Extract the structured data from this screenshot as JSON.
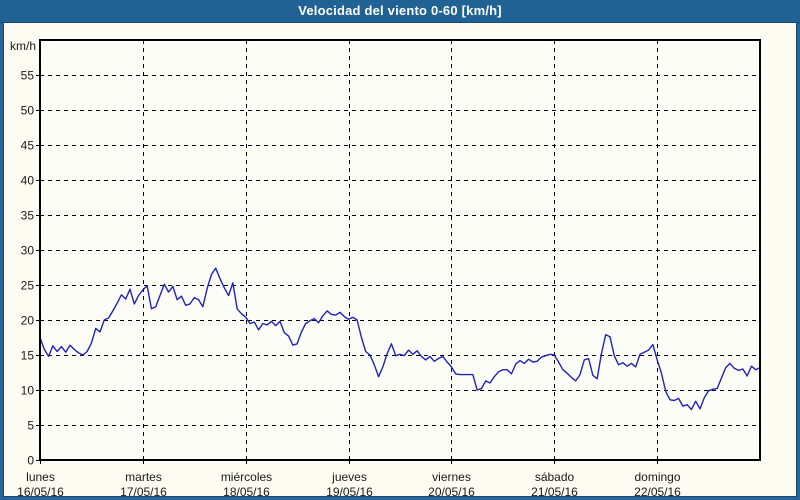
{
  "window": {
    "title": "Velocidad del viento 0-60 [km/h]"
  },
  "colors": {
    "titlebar_bg": "#1F6293",
    "titlebar_text": "#FFFFFF",
    "frame_border": "#27659B",
    "page_background": "#FCFCF2",
    "plot_background": "#FDFDF8",
    "grid": "#000000",
    "axis_border": "#000000",
    "line": "#2222BB",
    "label_text": "#1A1A1A"
  },
  "y_axis": {
    "unit_label": "km/h",
    "ticks": [
      0,
      5,
      10,
      15,
      20,
      25,
      30,
      35,
      40,
      45,
      50,
      55
    ],
    "max": 60
  },
  "x_axis": {
    "days": [
      {
        "name": "lunes",
        "date": "16/05/16"
      },
      {
        "name": "martes",
        "date": "17/05/16"
      },
      {
        "name": "miércoles",
        "date": "18/05/16"
      },
      {
        "name": "jueves",
        "date": "19/05/16"
      },
      {
        "name": "viernes",
        "date": "20/05/16"
      },
      {
        "name": "sábado",
        "date": "21/05/16"
      },
      {
        "name": "domingo",
        "date": "22/05/16"
      }
    ]
  },
  "chart_data": {
    "type": "line",
    "title": "Velocidad del viento 0-60 [km/h]",
    "ylabel": "km/h",
    "ylim": [
      0,
      60
    ],
    "grid": "dashed",
    "legend_position": "none",
    "x_start": "16/05/16 00:00",
    "x_step_hours": 1,
    "x_day_labels": [
      "lunes 16/05/16",
      "martes 17/05/16",
      "miércoles 18/05/16",
      "jueves 19/05/16",
      "viernes 20/05/16",
      "sábado 21/05/16",
      "domingo 22/05/16"
    ],
    "series": [
      {
        "name": "Velocidad del viento",
        "color": "#2222BB",
        "values": [
          17.5,
          15.8,
          14.8,
          16.3,
          15.5,
          16.2,
          15.4,
          16.4,
          15.8,
          15.3,
          15.0,
          15.5,
          16.7,
          18.8,
          18.3,
          20.0,
          20.3,
          21.3,
          22.4,
          23.6,
          23.0,
          24.4,
          22.3,
          23.5,
          24.3,
          24.9,
          21.6,
          21.9,
          23.5,
          25.1,
          24.0,
          24.8,
          22.9,
          23.4,
          22.1,
          22.3,
          23.2,
          22.9,
          21.9,
          24.5,
          26.5,
          27.4,
          25.9,
          24.6,
          23.5,
          25.3,
          21.6,
          20.9,
          20.4,
          19.5,
          19.7,
          18.6,
          19.5,
          19.3,
          19.8,
          19.2,
          19.8,
          18.2,
          17.7,
          16.4,
          16.6,
          18.3,
          19.5,
          19.9,
          20.2,
          19.6,
          20.6,
          21.3,
          20.8,
          20.7,
          21.1,
          20.5,
          20.1,
          20.4,
          20.0,
          17.5,
          15.5,
          15.0,
          13.6,
          11.9,
          13.3,
          15.2,
          16.6,
          14.9,
          15.1,
          14.9,
          15.7,
          15.1,
          15.6,
          14.8,
          14.3,
          14.8,
          14.1,
          14.5,
          14.8,
          14.0,
          13.3,
          12.3,
          12.2,
          12.2,
          12.2,
          12.2,
          10.0,
          10.2,
          11.3,
          11.0,
          11.9,
          12.6,
          12.9,
          12.9,
          12.3,
          13.7,
          14.2,
          13.8,
          14.4,
          14.0,
          14.1,
          14.7,
          14.9,
          15.1,
          15.0,
          14.0,
          12.9,
          12.4,
          11.8,
          11.3,
          12.2,
          14.3,
          14.5,
          12.1,
          11.6,
          15.2,
          17.9,
          17.6,
          14.9,
          13.6,
          13.9,
          13.4,
          13.8,
          13.3,
          15.1,
          15.4,
          15.7,
          16.5,
          14.3,
          12.4,
          9.8,
          8.6,
          8.5,
          8.8,
          7.7,
          7.9,
          7.2,
          8.4,
          7.3,
          8.9,
          9.9,
          10.1,
          10.2,
          11.7,
          13.2,
          13.8,
          13.1,
          12.8,
          13.0,
          12.0,
          13.4,
          12.9,
          13.2
        ]
      }
    ]
  }
}
